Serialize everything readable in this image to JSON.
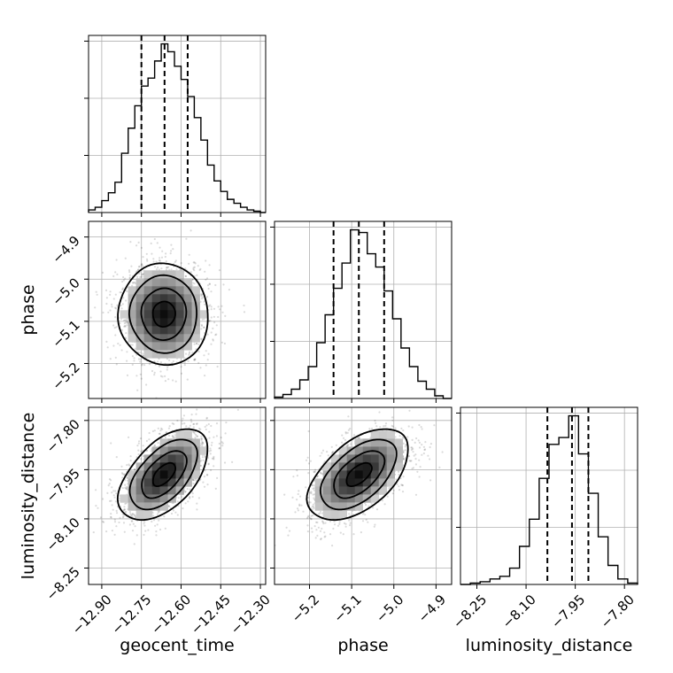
{
  "chart_data": {
    "type": "corner",
    "parameters": [
      "geocent_time",
      "phase",
      "luminosity_distance"
    ],
    "axes": {
      "geocent_time": {
        "label": "geocent_time",
        "range": [
          -12.95,
          -12.28
        ],
        "ticks": [
          -12.9,
          -12.75,
          -12.6,
          -12.45,
          -12.3
        ],
        "tick_labels": [
          "−12.90",
          "−12.75",
          "−12.60",
          "−12.45",
          "−12.30"
        ]
      },
      "phase": {
        "label": "phase",
        "range": [
          -5.283,
          -4.863
        ],
        "ticks": [
          -5.2,
          -5.1,
          -5.0,
          -4.9
        ],
        "tick_labels": [
          "−5.2",
          "−5.1",
          "−5.0",
          "−4.9"
        ]
      },
      "luminosity_distance": {
        "label": "luminosity_distance",
        "range": [
          -8.3,
          -7.76
        ],
        "ticks": [
          -8.25,
          -8.1,
          -7.95,
          -7.8
        ],
        "tick_labels": [
          "−8.25",
          "−8.10",
          "−7.95",
          "−7.80"
        ]
      }
    },
    "histograms": {
      "geocent_time": {
        "edges": [
          -12.95,
          -12.925,
          -12.9,
          -12.875,
          -12.85,
          -12.825,
          -12.8,
          -12.775,
          -12.75,
          -12.725,
          -12.7,
          -12.675,
          -12.65,
          -12.625,
          -12.6,
          -12.575,
          -12.55,
          -12.525,
          -12.5,
          -12.475,
          -12.45,
          -12.425,
          -12.4,
          -12.375,
          -12.35,
          -12.325,
          -12.3,
          -12.28
        ],
        "counts": [
          2,
          4,
          9,
          15,
          23,
          45,
          64,
          81,
          96,
          102,
          115,
          128,
          122,
          111,
          101,
          88,
          72,
          55,
          36,
          24,
          16,
          10,
          7,
          4,
          2,
          1,
          0
        ],
        "quantiles": [
          -12.75,
          -12.6625,
          -12.575
        ]
      },
      "phase": {
        "edges": [
          -5.283,
          -5.263,
          -5.243,
          -5.223,
          -5.203,
          -5.183,
          -5.163,
          -5.143,
          -5.123,
          -5.103,
          -5.083,
          -5.063,
          -5.043,
          -5.023,
          -5.003,
          -4.983,
          -4.963,
          -4.943,
          -4.923,
          -4.903,
          -4.883,
          -4.863
        ],
        "counts": [
          1,
          3,
          7,
          14,
          24,
          42,
          63,
          83,
          102,
          127,
          125,
          109,
          99,
          81,
          60,
          38,
          24,
          13,
          7,
          2,
          0
        ],
        "quantiles": [
          -5.143,
          -5.083,
          -5.023
        ]
      },
      "luminosity_distance": {
        "edges": [
          -8.3,
          -8.27,
          -8.24,
          -8.21,
          -8.18,
          -8.15,
          -8.12,
          -8.09,
          -8.06,
          -8.03,
          -8.0,
          -7.97,
          -7.94,
          -7.91,
          -7.88,
          -7.85,
          -7.82,
          -7.79,
          -7.76
        ],
        "counts": [
          0,
          1,
          2,
          4,
          6,
          12,
          28,
          48,
          78,
          103,
          108,
          124,
          96,
          67,
          35,
          14,
          4,
          1
        ],
        "quantiles": [
          -8.035,
          -7.96,
          -7.91
        ]
      }
    },
    "scatter_2d": [
      {
        "x": "geocent_time",
        "y": "phase",
        "mean": [
          -12.665,
          -5.083
        ],
        "std": [
          0.085,
          0.06
        ],
        "corr": 0.0,
        "levels": [
          0.5,
          1.0,
          1.5,
          2.0
        ]
      },
      {
        "x": "geocent_time",
        "y": "luminosity_distance",
        "mean": [
          -12.665,
          -7.965
        ],
        "std": [
          0.085,
          0.07
        ],
        "corr": 0.55,
        "levels": [
          0.5,
          1.0,
          1.5,
          2.0
        ]
      },
      {
        "x": "phase",
        "y": "luminosity_distance",
        "mean": [
          -5.083,
          -7.965
        ],
        "std": [
          0.06,
          0.07
        ],
        "corr": 0.55,
        "levels": [
          0.5,
          1.0,
          1.5,
          2.0
        ]
      }
    ],
    "grid": true,
    "quantile_line_style": "dashed"
  }
}
